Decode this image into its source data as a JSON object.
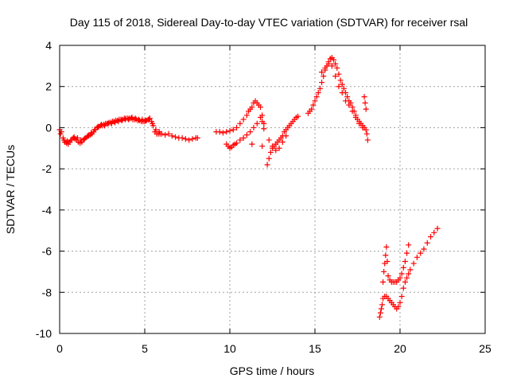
{
  "chart_data": {
    "type": "scatter",
    "title": "Day 115 of 2018, Sidereal Day-to-day VTEC variation (SDTVAR) for receiver rsal",
    "xlabel": "GPS time / hours",
    "ylabel": "SDTVAR / TECUs",
    "xlim": [
      0,
      25
    ],
    "ylim": [
      -10,
      4
    ],
    "x_ticks": [
      0,
      5,
      10,
      15,
      20,
      25
    ],
    "y_ticks": [
      -10,
      -8,
      -6,
      -4,
      -2,
      0,
      2,
      4
    ],
    "x_tick_labels": [
      "0",
      "5",
      "10",
      "15",
      "20",
      "25"
    ],
    "y_tick_labels": [
      "-10",
      "-8",
      "-6",
      "-4",
      "-2",
      "0",
      "2",
      "4"
    ],
    "grid": true,
    "marker": "plus",
    "color": "#ff0000",
    "series": [
      {
        "x": [
          0.0,
          0.1,
          0.2,
          0.3,
          0.4,
          0.5,
          0.6,
          0.7,
          0.8,
          0.9,
          1.0,
          1.1,
          1.2,
          1.3,
          1.4,
          1.5,
          1.6,
          1.7,
          1.8,
          1.9,
          2.0,
          2.1,
          2.2,
          2.3,
          2.4,
          2.5,
          2.6,
          2.7,
          2.8,
          2.9,
          3.0,
          3.1,
          3.2,
          3.3,
          3.4,
          3.5,
          3.6,
          3.7,
          3.8,
          3.9,
          4.0,
          4.1,
          4.2,
          4.3,
          4.4,
          4.5,
          4.6,
          4.7,
          4.8,
          4.9,
          5.0,
          5.1,
          5.2,
          5.3,
          5.4,
          5.5,
          5.6,
          5.7,
          5.8,
          5.9,
          6.0,
          6.2,
          6.4,
          6.6,
          6.8,
          7.0,
          7.2,
          7.4,
          7.6,
          7.8,
          8.0,
          8.1
        ],
        "y": [
          -0.1,
          -0.2,
          -0.5,
          -0.7,
          -0.75,
          -0.8,
          -0.7,
          -0.6,
          -0.5,
          -0.55,
          -0.6,
          -0.7,
          -0.75,
          -0.7,
          -0.6,
          -0.5,
          -0.45,
          -0.4,
          -0.35,
          -0.3,
          -0.2,
          -0.1,
          0.0,
          0.05,
          0.1,
          0.1,
          0.15,
          0.2,
          0.2,
          0.25,
          0.25,
          0.3,
          0.3,
          0.35,
          0.35,
          0.4,
          0.4,
          0.4,
          0.45,
          0.45,
          0.45,
          0.45,
          0.45,
          0.4,
          0.4,
          0.4,
          0.35,
          0.35,
          0.3,
          0.3,
          0.3,
          0.35,
          0.4,
          0.45,
          0.3,
          0.1,
          -0.2,
          -0.3,
          -0.3,
          -0.3,
          -0.3,
          -0.35,
          -0.3,
          -0.4,
          -0.45,
          -0.5,
          -0.5,
          -0.55,
          -0.6,
          -0.55,
          -0.5,
          -0.5
        ]
      },
      {
        "x": [
          0.05,
          0.25,
          0.45,
          0.65,
          0.85,
          1.05,
          1.25,
          1.45,
          1.65,
          1.85,
          2.05,
          2.25,
          2.45,
          2.65,
          2.85,
          3.05,
          3.25,
          3.45,
          3.65,
          3.85,
          4.05,
          4.25,
          4.45,
          4.65,
          4.85,
          5.05,
          5.25,
          5.45,
          5.65,
          5.85
        ],
        "y": [
          -0.3,
          -0.6,
          -0.65,
          -0.6,
          -0.45,
          -0.5,
          -0.6,
          -0.55,
          -0.4,
          -0.25,
          -0.1,
          0.05,
          0.15,
          0.1,
          0.2,
          0.2,
          0.25,
          0.3,
          0.35,
          0.4,
          0.4,
          0.5,
          0.45,
          0.4,
          0.4,
          0.35,
          0.4,
          0.2,
          -0.1,
          -0.2
        ]
      },
      {
        "x": [
          9.2,
          9.4,
          9.6,
          9.8,
          10.0,
          10.2,
          10.4,
          10.6,
          10.8,
          11.0,
          11.1,
          11.2,
          11.3,
          11.4,
          11.5,
          11.6,
          11.7,
          11.8,
          11.9,
          12.0
        ],
        "y": [
          -0.2,
          -0.2,
          -0.25,
          -0.2,
          -0.15,
          -0.1,
          0.0,
          0.2,
          0.4,
          0.6,
          0.8,
          0.9,
          1.0,
          1.2,
          1.3,
          1.2,
          1.1,
          1.0,
          0.6,
          0.2
        ]
      },
      {
        "x": [
          9.8,
          9.9,
          10.0,
          10.1,
          10.2,
          10.3,
          10.4,
          10.6,
          10.8,
          11.0,
          11.2,
          11.4,
          11.6,
          11.8,
          11.9,
          12.0
        ],
        "y": [
          -0.8,
          -0.9,
          -1.0,
          -0.95,
          -0.85,
          -0.8,
          -0.75,
          -0.6,
          -0.5,
          -0.35,
          -0.2,
          0.0,
          0.2,
          0.5,
          0.3,
          -0.05
        ]
      },
      {
        "x": [
          11.3,
          11.9,
          12.2,
          12.3,
          12.4,
          12.5,
          12.6,
          12.7,
          12.8,
          12.9,
          13.0,
          13.1,
          13.2,
          13.3,
          13.4,
          13.5,
          13.6,
          13.7,
          13.8,
          13.9,
          14.0
        ],
        "y": [
          -0.8,
          -0.9,
          -1.8,
          -1.5,
          -1.2,
          -1.0,
          -0.9,
          -0.8,
          -0.7,
          -0.6,
          -0.5,
          -0.4,
          -0.2,
          -0.1,
          0.0,
          0.1,
          0.2,
          0.3,
          0.4,
          0.5,
          0.55
        ]
      },
      {
        "x": [
          12.3,
          12.5,
          12.7,
          12.9,
          13.1,
          13.3
        ],
        "y": [
          -0.6,
          -0.9,
          -1.1,
          -1.0,
          -0.7,
          -0.4
        ]
      },
      {
        "x": [
          14.6,
          14.7,
          14.8,
          14.9,
          15.0,
          15.1,
          15.2,
          15.3,
          15.4,
          15.5,
          15.6,
          15.7,
          15.8,
          15.9,
          16.0,
          16.1,
          16.2,
          16.3,
          16.4,
          16.5,
          16.6,
          16.7,
          16.8,
          16.9,
          17.0,
          17.1,
          17.2,
          17.3,
          17.4,
          17.5,
          17.6,
          17.7,
          17.8,
          17.9,
          18.0
        ],
        "y": [
          0.7,
          0.8,
          0.9,
          1.1,
          1.3,
          1.5,
          1.7,
          1.9,
          2.2,
          2.5,
          2.8,
          3.0,
          3.2,
          3.35,
          3.4,
          3.3,
          3.1,
          2.9,
          2.6,
          2.3,
          2.1,
          1.9,
          1.7,
          1.5,
          1.3,
          1.2,
          1.0,
          0.8,
          0.6,
          0.4,
          0.3,
          0.2,
          0.1,
          0.0,
          -0.1
        ]
      },
      {
        "x": [
          15.4,
          15.6,
          15.8,
          16.0,
          16.2,
          16.4,
          16.6,
          16.8,
          17.0,
          17.2,
          17.4,
          17.6,
          17.8
        ],
        "y": [
          2.7,
          2.9,
          3.1,
          3.0,
          2.5,
          2.0,
          1.7,
          1.3,
          1.1,
          0.8,
          0.5,
          0.2,
          0.0
        ]
      },
      {
        "x": [
          17.9,
          17.95,
          18.0,
          18.05,
          18.1
        ],
        "y": [
          1.5,
          1.2,
          0.9,
          -0.3,
          -0.6
        ]
      },
      {
        "x": [
          18.8,
          18.85,
          18.9,
          18.95,
          19.0,
          19.1,
          19.2,
          19.3,
          19.4,
          19.5,
          19.6,
          19.7,
          19.8,
          19.9,
          20.0,
          20.1,
          20.2,
          20.3,
          20.4,
          20.5,
          20.6,
          20.8,
          21.0,
          21.2,
          21.4,
          21.6,
          21.8,
          22.0,
          22.2
        ],
        "y": [
          -9.2,
          -9.0,
          -8.8,
          -8.6,
          -8.3,
          -8.2,
          -8.2,
          -8.3,
          -8.4,
          -8.5,
          -8.6,
          -8.7,
          -8.8,
          -8.7,
          -8.5,
          -8.2,
          -7.8,
          -7.5,
          -7.3,
          -7.1,
          -6.9,
          -6.6,
          -6.3,
          -6.1,
          -5.9,
          -5.6,
          -5.3,
          -5.1,
          -4.9
        ]
      },
      {
        "x": [
          19.0,
          19.05,
          19.1,
          19.15,
          19.2,
          19.25,
          19.3,
          19.4,
          19.5,
          19.6,
          19.7,
          19.8,
          19.9,
          20.0,
          20.1,
          20.2,
          20.3,
          20.4,
          20.5
        ],
        "y": [
          -7.5,
          -7.0,
          -6.6,
          -6.2,
          -5.8,
          -6.5,
          -7.2,
          -7.4,
          -7.5,
          -7.5,
          -7.5,
          -7.5,
          -7.4,
          -7.3,
          -7.1,
          -6.8,
          -6.5,
          -6.1,
          -5.7
        ]
      }
    ]
  }
}
